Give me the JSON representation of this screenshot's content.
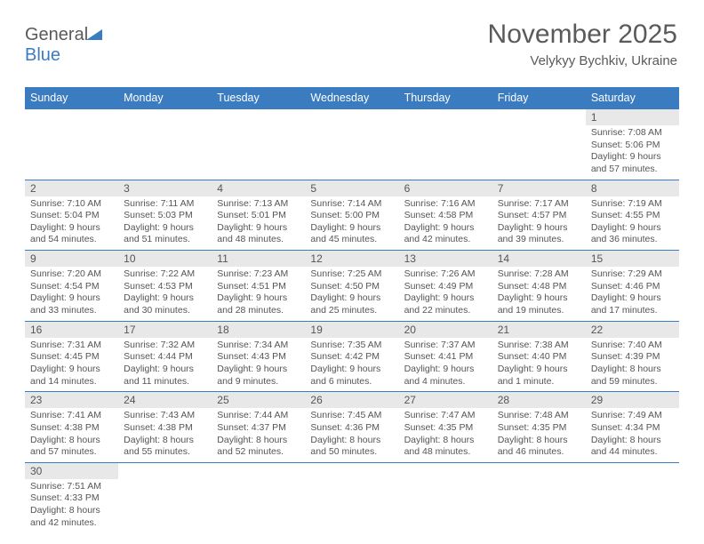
{
  "logo": {
    "text1": "General",
    "text2": "Blue"
  },
  "title": "November 2025",
  "location": "Velykyy Bychkiv, Ukraine",
  "colors": {
    "header_bg": "#3b7bbf",
    "header_text": "#ffffff",
    "daynum_bg": "#e8e8e8",
    "rule": "#3b7bbf",
    "body_text": "#555555"
  },
  "day_headers": [
    "Sunday",
    "Monday",
    "Tuesday",
    "Wednesday",
    "Thursday",
    "Friday",
    "Saturday"
  ],
  "weeks": [
    [
      null,
      null,
      null,
      null,
      null,
      null,
      {
        "n": "1",
        "sunrise": "7:08 AM",
        "sunset": "5:06 PM",
        "day_h": "9",
        "day_m": "57"
      }
    ],
    [
      {
        "n": "2",
        "sunrise": "7:10 AM",
        "sunset": "5:04 PM",
        "day_h": "9",
        "day_m": "54"
      },
      {
        "n": "3",
        "sunrise": "7:11 AM",
        "sunset": "5:03 PM",
        "day_h": "9",
        "day_m": "51"
      },
      {
        "n": "4",
        "sunrise": "7:13 AM",
        "sunset": "5:01 PM",
        "day_h": "9",
        "day_m": "48"
      },
      {
        "n": "5",
        "sunrise": "7:14 AM",
        "sunset": "5:00 PM",
        "day_h": "9",
        "day_m": "45"
      },
      {
        "n": "6",
        "sunrise": "7:16 AM",
        "sunset": "4:58 PM",
        "day_h": "9",
        "day_m": "42"
      },
      {
        "n": "7",
        "sunrise": "7:17 AM",
        "sunset": "4:57 PM",
        "day_h": "9",
        "day_m": "39"
      },
      {
        "n": "8",
        "sunrise": "7:19 AM",
        "sunset": "4:55 PM",
        "day_h": "9",
        "day_m": "36"
      }
    ],
    [
      {
        "n": "9",
        "sunrise": "7:20 AM",
        "sunset": "4:54 PM",
        "day_h": "9",
        "day_m": "33"
      },
      {
        "n": "10",
        "sunrise": "7:22 AM",
        "sunset": "4:53 PM",
        "day_h": "9",
        "day_m": "30"
      },
      {
        "n": "11",
        "sunrise": "7:23 AM",
        "sunset": "4:51 PM",
        "day_h": "9",
        "day_m": "28"
      },
      {
        "n": "12",
        "sunrise": "7:25 AM",
        "sunset": "4:50 PM",
        "day_h": "9",
        "day_m": "25"
      },
      {
        "n": "13",
        "sunrise": "7:26 AM",
        "sunset": "4:49 PM",
        "day_h": "9",
        "day_m": "22"
      },
      {
        "n": "14",
        "sunrise": "7:28 AM",
        "sunset": "4:48 PM",
        "day_h": "9",
        "day_m": "19"
      },
      {
        "n": "15",
        "sunrise": "7:29 AM",
        "sunset": "4:46 PM",
        "day_h": "9",
        "day_m": "17"
      }
    ],
    [
      {
        "n": "16",
        "sunrise": "7:31 AM",
        "sunset": "4:45 PM",
        "day_h": "9",
        "day_m": "14"
      },
      {
        "n": "17",
        "sunrise": "7:32 AM",
        "sunset": "4:44 PM",
        "day_h": "9",
        "day_m": "11"
      },
      {
        "n": "18",
        "sunrise": "7:34 AM",
        "sunset": "4:43 PM",
        "day_h": "9",
        "day_m": "9"
      },
      {
        "n": "19",
        "sunrise": "7:35 AM",
        "sunset": "4:42 PM",
        "day_h": "9",
        "day_m": "6"
      },
      {
        "n": "20",
        "sunrise": "7:37 AM",
        "sunset": "4:41 PM",
        "day_h": "9",
        "day_m": "4"
      },
      {
        "n": "21",
        "sunrise": "7:38 AM",
        "sunset": "4:40 PM",
        "day_h": "9",
        "day_m": "1"
      },
      {
        "n": "22",
        "sunrise": "7:40 AM",
        "sunset": "4:39 PM",
        "day_h": "8",
        "day_m": "59"
      }
    ],
    [
      {
        "n": "23",
        "sunrise": "7:41 AM",
        "sunset": "4:38 PM",
        "day_h": "8",
        "day_m": "57"
      },
      {
        "n": "24",
        "sunrise": "7:43 AM",
        "sunset": "4:38 PM",
        "day_h": "8",
        "day_m": "55"
      },
      {
        "n": "25",
        "sunrise": "7:44 AM",
        "sunset": "4:37 PM",
        "day_h": "8",
        "day_m": "52"
      },
      {
        "n": "26",
        "sunrise": "7:45 AM",
        "sunset": "4:36 PM",
        "day_h": "8",
        "day_m": "50"
      },
      {
        "n": "27",
        "sunrise": "7:47 AM",
        "sunset": "4:35 PM",
        "day_h": "8",
        "day_m": "48"
      },
      {
        "n": "28",
        "sunrise": "7:48 AM",
        "sunset": "4:35 PM",
        "day_h": "8",
        "day_m": "46"
      },
      {
        "n": "29",
        "sunrise": "7:49 AM",
        "sunset": "4:34 PM",
        "day_h": "8",
        "day_m": "44"
      }
    ],
    [
      {
        "n": "30",
        "sunrise": "7:51 AM",
        "sunset": "4:33 PM",
        "day_h": "8",
        "day_m": "42"
      },
      null,
      null,
      null,
      null,
      null,
      null
    ]
  ],
  "labels": {
    "sunrise": "Sunrise:",
    "sunset": "Sunset:",
    "daylight": "Daylight:",
    "hours": "hours",
    "and": "and",
    "minutes_singular": "minute.",
    "minutes_plural": "minutes."
  }
}
